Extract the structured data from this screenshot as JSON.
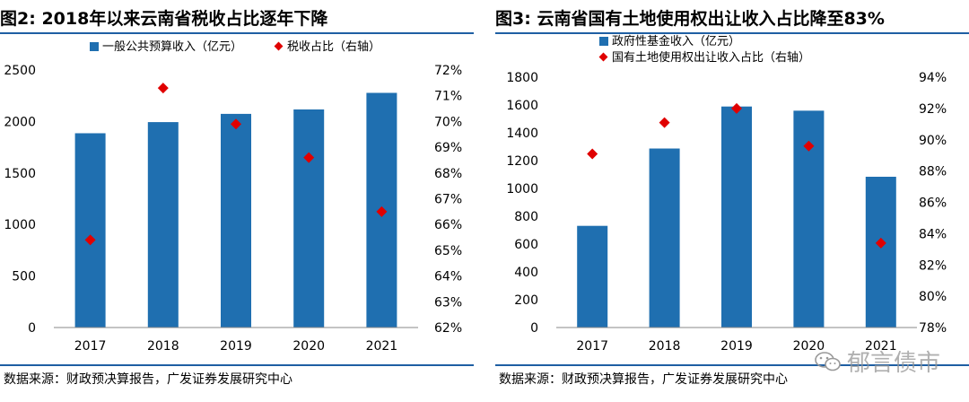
{
  "colors": {
    "bar": "#1f6fb0",
    "marker": "#e00000",
    "rule": "#1f5fa3"
  },
  "watermark": {
    "text": "郁言债市",
    "icon": "wechat-icon"
  },
  "chart_data": [
    {
      "type": "bar",
      "figure_label": "图2:",
      "title": "2018年以来云南省税收占比逐年下降",
      "source": "数据来源：财政预决算报告，广发证券发展研究中心",
      "categories": [
        "2017",
        "2018",
        "2019",
        "2020",
        "2021"
      ],
      "series": [
        {
          "name": "一般公共预算收入（亿元）",
          "kind": "bar",
          "axis": "left",
          "values": [
            1886,
            1994,
            2074,
            2117,
            2278
          ]
        },
        {
          "name": "税收占比（右轴）",
          "kind": "marker",
          "axis": "right",
          "values": [
            65.4,
            71.3,
            69.9,
            68.6,
            66.5
          ]
        }
      ],
      "left_axis": {
        "min": 0,
        "max": 2500,
        "step": 500,
        "ticks": [
          "0",
          "500",
          "1000",
          "1500",
          "2000",
          "2500"
        ]
      },
      "right_axis": {
        "min": 62,
        "max": 72,
        "step": 1,
        "ticks": [
          "62%",
          "63%",
          "64%",
          "65%",
          "66%",
          "67%",
          "68%",
          "69%",
          "70%",
          "71%",
          "72%"
        ]
      },
      "legend": "top"
    },
    {
      "type": "bar",
      "figure_label": "图3:",
      "title": "云南省国有土地使用权出让收入占比降至83%",
      "source": "数据来源：财政预决算报告，广发证券发展研究中心",
      "categories": [
        "2017",
        "2018",
        "2019",
        "2020",
        "2021"
      ],
      "series": [
        {
          "name": "政府性基金收入（亿元）",
          "kind": "bar",
          "axis": "left",
          "values": [
            731,
            1287,
            1589,
            1559,
            1084
          ]
        },
        {
          "name": "国有土地使用权出让收入占比（右轴）",
          "kind": "marker",
          "axis": "right",
          "values": [
            89.1,
            91.1,
            92.0,
            89.6,
            83.4
          ]
        }
      ],
      "left_axis": {
        "min": 0,
        "max": 1800,
        "step": 200,
        "ticks": [
          "0",
          "200",
          "400",
          "600",
          "800",
          "1000",
          "1200",
          "1400",
          "1600",
          "1800"
        ]
      },
      "right_axis": {
        "min": 78,
        "max": 94,
        "step": 2,
        "ticks": [
          "78%",
          "80%",
          "82%",
          "84%",
          "86%",
          "88%",
          "90%",
          "92%",
          "94%"
        ]
      },
      "legend": "top-left"
    }
  ]
}
